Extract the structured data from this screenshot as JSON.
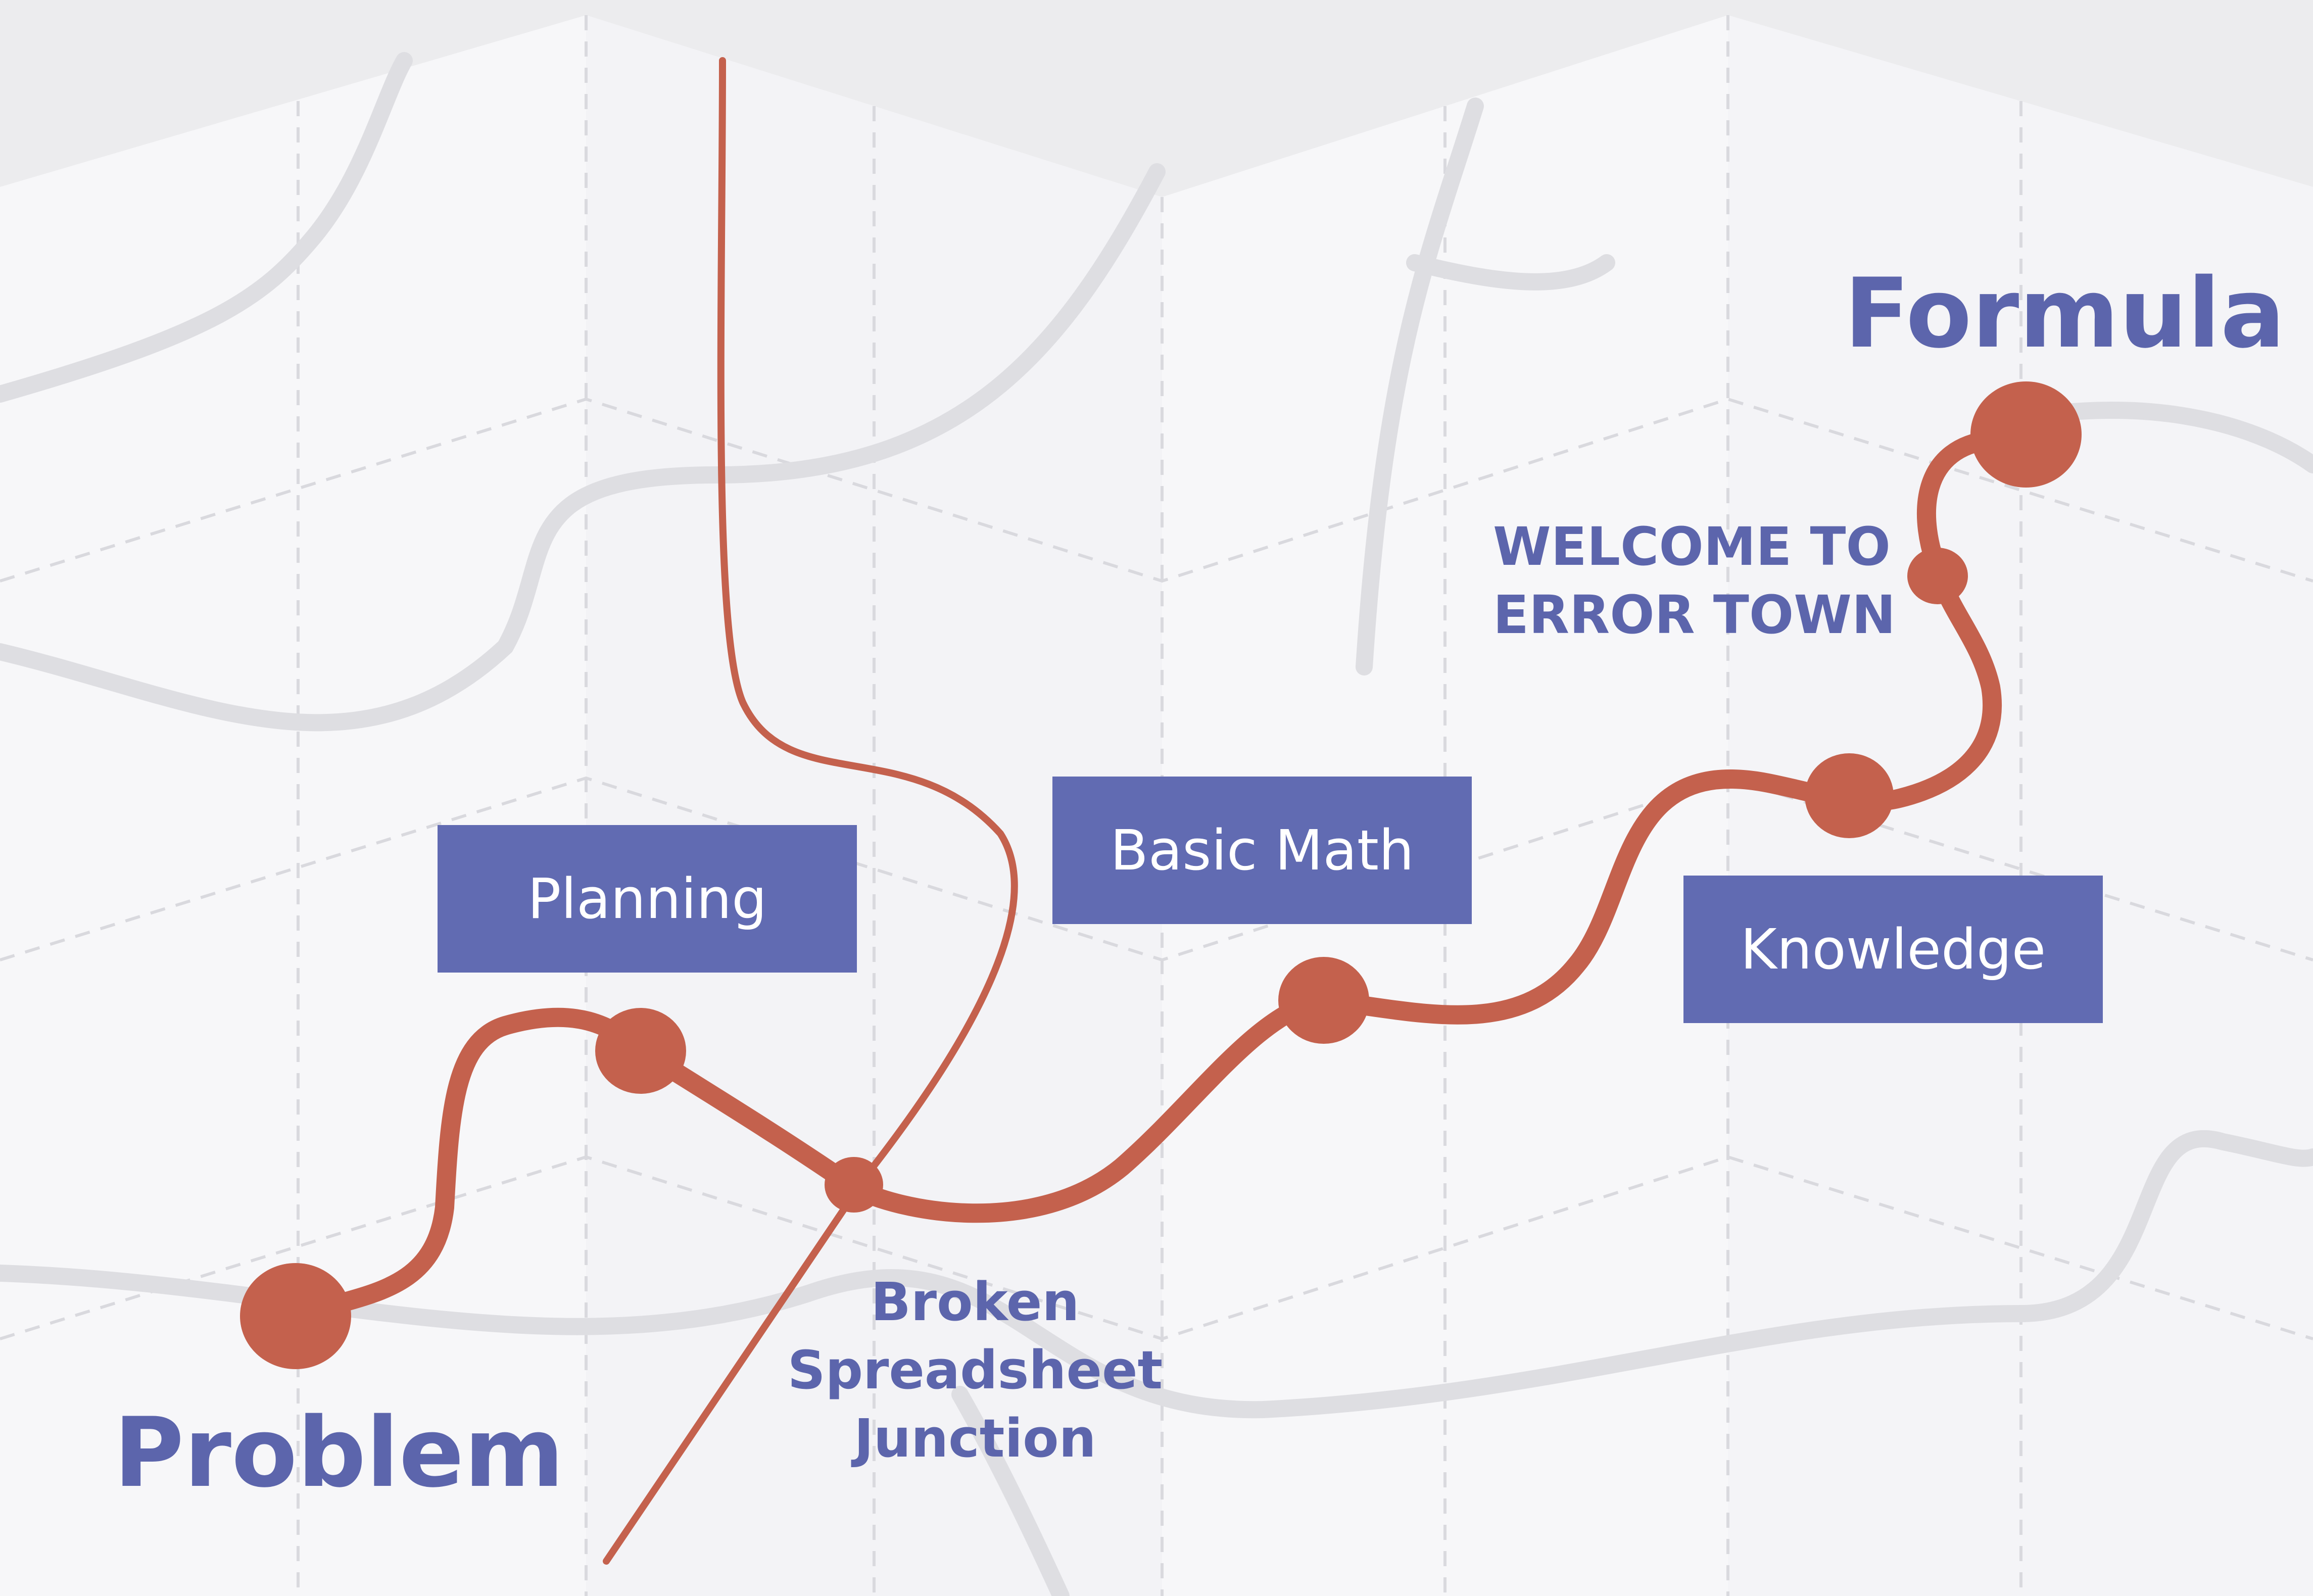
{
  "colors": {
    "background": "#ececee",
    "paper": "#f7f7f9",
    "route": "#c4614d",
    "label": "#5c65ac",
    "box": "#616bb2",
    "box_text": "#ffffff",
    "roads": "#dedee2"
  },
  "labels": {
    "start": "Problem",
    "end": "Formula",
    "junction_line1": "Broken",
    "junction_line2": "Spreadsheet",
    "junction_line3": "Junction",
    "town_line1": "WELCOME TO",
    "town_line2": "ERROR TOWN"
  },
  "stops": {
    "planning": "Planning",
    "basic_math": "Basic Math",
    "knowledge": "Knowledge"
  }
}
